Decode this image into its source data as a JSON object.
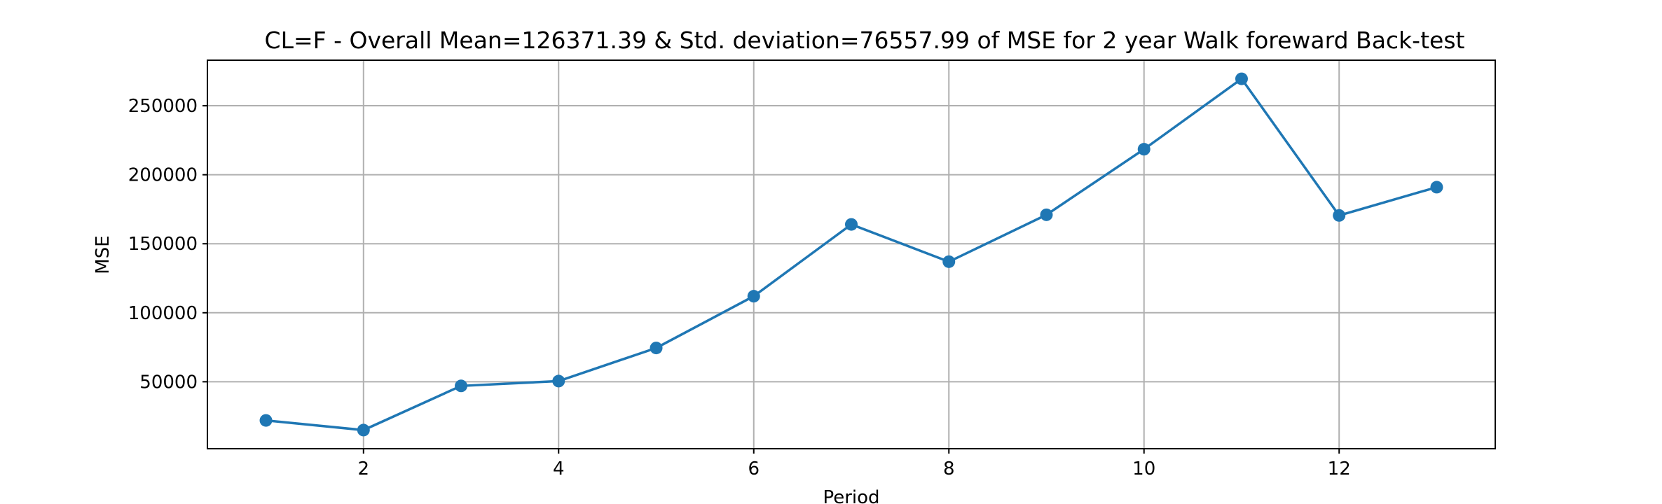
{
  "chart_data": {
    "type": "line",
    "title": "CL=F - Overall Mean=126371.39 & Std. deviation=76557.99 of MSE for 2 year Walk foreward Back-test",
    "xlabel": "Period",
    "ylabel": "MSE",
    "x": [
      1,
      2,
      3,
      4,
      5,
      6,
      7,
      8,
      9,
      10,
      11,
      12,
      13
    ],
    "series": [
      {
        "values": [
          22000,
          15000,
          47000,
          50500,
          74500,
          112000,
          164000,
          137000,
          171000,
          218500,
          269500,
          170500,
          191000
        ],
        "color": "#1f77b4",
        "marker": "circle"
      }
    ],
    "xlim": [
      0.4,
      13.6
    ],
    "ylim": [
      1500,
      283000
    ],
    "xticks": [
      2,
      4,
      6,
      8,
      10,
      12
    ],
    "yticks": [
      50000,
      100000,
      150000,
      200000,
      250000
    ],
    "grid": true
  }
}
